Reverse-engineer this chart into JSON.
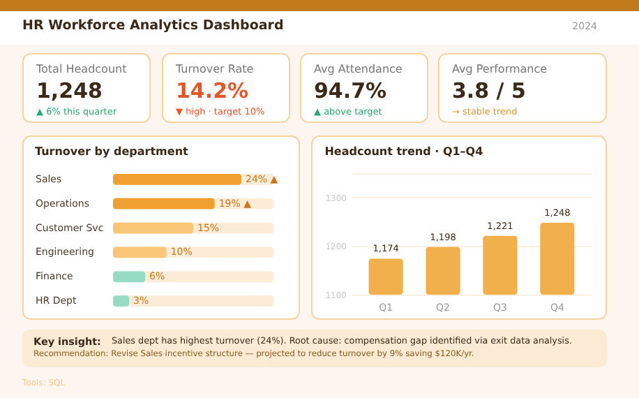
{
  "chart_data": [
    {
      "type": "other",
      "title": "HR Workforce Analytics Dashboard",
      "subtitle": "2024"
    },
    {
      "type": "other",
      "title": "Total Headcount",
      "annotations": [
        "1,248",
        "▲ 6% this quarter"
      ]
    },
    {
      "type": "other",
      "title": "Turnover Rate",
      "annotations": [
        "14.2%",
        "▼ high · target 10%"
      ]
    },
    {
      "type": "other",
      "title": "Avg Attendance",
      "annotations": [
        "94.7%",
        "▲ above target"
      ]
    },
    {
      "type": "other",
      "title": "Avg Performance",
      "annotations": [
        "3.8 / 5",
        "→ stable trend"
      ]
    },
    {
      "type": "bar",
      "orientation": "horizontal",
      "title": "Turnover by department",
      "categories": [
        "Sales",
        "Operations",
        "Customer Svc",
        "Engineering",
        "Finance",
        "HR Dept"
      ],
      "values": [
        24,
        19,
        15,
        10,
        6,
        3
      ],
      "colors": [
        "#f0a030",
        "#f0a030",
        "#f9c677",
        "#f9c677",
        "#96dcc4",
        "#96dcc4"
      ],
      "value_labels": [
        "24% ▲",
        "19% ▲",
        "15%",
        "10%",
        "6%",
        "3%"
      ],
      "xlim": [
        0,
        30
      ],
      "tick_labels": "y",
      "bands": [
        {
          "axis": "x",
          "from": 0,
          "to": 30,
          "color": "#fbebd7"
        }
      ]
    },
    {
      "type": "bar",
      "title": "Headcount trend · Q1–Q4",
      "categories": [
        "Q1",
        "Q2",
        "Q3",
        "Q4"
      ],
      "values": [
        1174,
        1198,
        1221,
        1248
      ],
      "color": "#f2b04c",
      "value_labels": [
        "1,174",
        "1,198",
        "1,221",
        "1,248"
      ],
      "ylim": [
        1100,
        1350
      ],
      "yticks": [
        1100,
        1200,
        1300,
        {
          "value": 1350,
          "label": null
        }
      ],
      "grid": "y"
    },
    {
      "type": "other",
      "annotations": [
        "Key insight:",
        "Sales dept has highest turnover (24%). Root cause: compensation gap identified via exit data analysis.",
        "Recommendation: Revise Sales incentive structure — projected to reduce turnover by 9% saving $120K/yr.",
        "Tools: SQL"
      ]
    }
  ]
}
